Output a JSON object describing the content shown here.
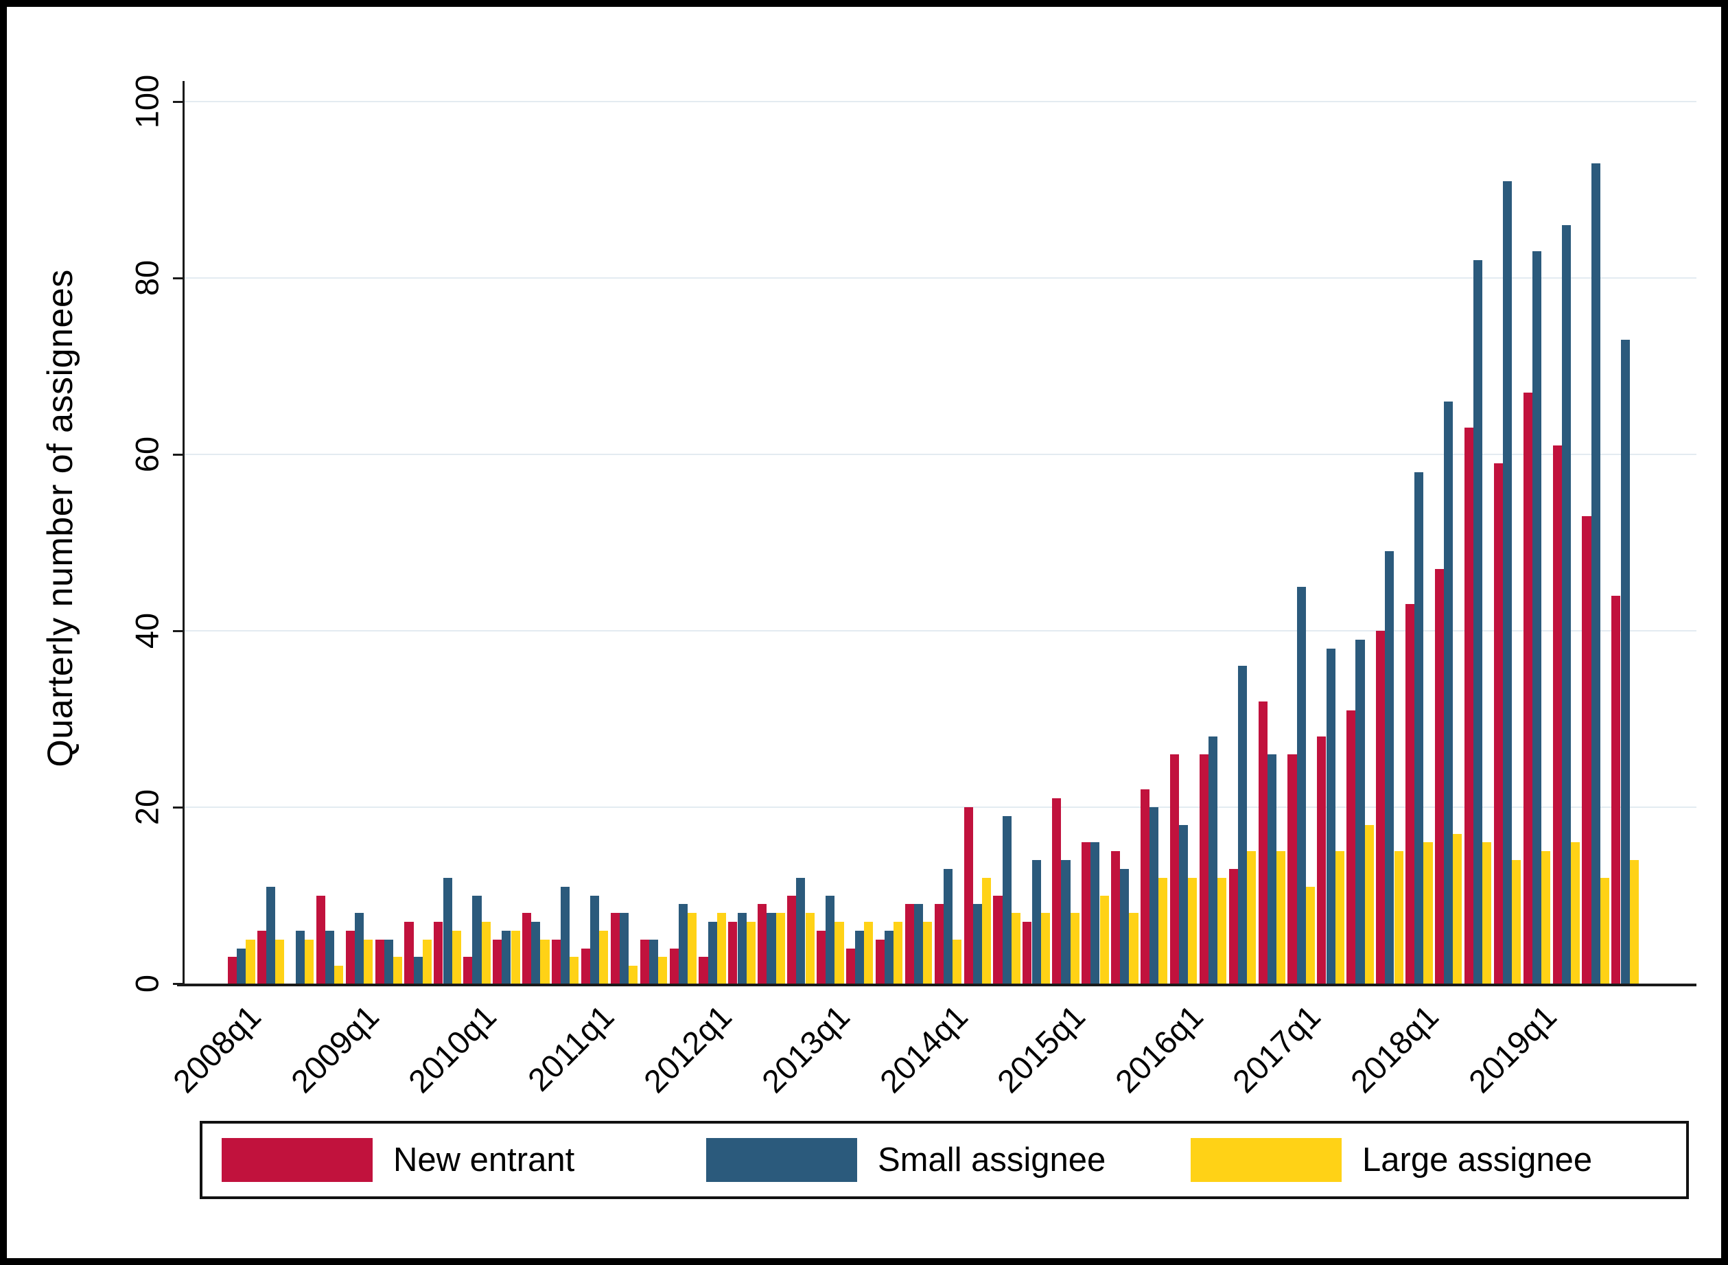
{
  "figure": {
    "background": "#ffffff",
    "border_color": "#000000",
    "axis_color": "#1a1a1a",
    "gridline_color": "#e3ebf1"
  },
  "chart_data": {
    "type": "bar",
    "title": "",
    "xlabel": "",
    "ylabel": "Quarterly number of assignees",
    "ylim": [
      0,
      100
    ],
    "y_ticks": [
      0,
      20,
      40,
      60,
      80,
      100
    ],
    "grid": true,
    "legend_position": "bottom",
    "x_tick_labels": [
      "2008q1",
      "2009q1",
      "2010q1",
      "2011q1",
      "2012q1",
      "2013q1",
      "2014q1",
      "2015q1",
      "2016q1",
      "2017q1",
      "2018q1",
      "2019q1"
    ],
    "categories": [
      "2008q1",
      "2008q2",
      "2008q3",
      "2008q4",
      "2009q1",
      "2009q2",
      "2009q3",
      "2009q4",
      "2010q1",
      "2010q2",
      "2010q3",
      "2010q4",
      "2011q1",
      "2011q2",
      "2011q3",
      "2011q4",
      "2012q1",
      "2012q2",
      "2012q3",
      "2012q4",
      "2013q1",
      "2013q2",
      "2013q3",
      "2013q4",
      "2014q1",
      "2014q2",
      "2014q3",
      "2014q4",
      "2015q1",
      "2015q2",
      "2015q3",
      "2015q4",
      "2016q1",
      "2016q2",
      "2016q3",
      "2016q4",
      "2017q1",
      "2017q2",
      "2017q3",
      "2017q4",
      "2018q1",
      "2018q2",
      "2018q3",
      "2018q4",
      "2019q1",
      "2019q2",
      "2019q3",
      "2019q4"
    ],
    "series": [
      {
        "name": "New entrant",
        "color": "#c1123d",
        "values": [
          3,
          6,
          0,
          10,
          6,
          5,
          7,
          7,
          3,
          5,
          8,
          5,
          4,
          8,
          5,
          4,
          3,
          7,
          9,
          10,
          6,
          4,
          5,
          9,
          9,
          20,
          10,
          7,
          21,
          16,
          15,
          22,
          26,
          26,
          13,
          32,
          26,
          28,
          31,
          40,
          43,
          47,
          63,
          59,
          67,
          61,
          53,
          44
        ]
      },
      {
        "name": "Small assignee",
        "color": "#2b5a7c",
        "values": [
          4,
          11,
          6,
          6,
          8,
          5,
          3,
          12,
          10,
          6,
          7,
          11,
          10,
          8,
          5,
          9,
          7,
          8,
          8,
          12,
          10,
          6,
          6,
          9,
          13,
          9,
          19,
          14,
          14,
          16,
          13,
          20,
          18,
          28,
          36,
          26,
          45,
          38,
          39,
          49,
          58,
          66,
          82,
          91,
          83,
          86,
          93,
          73
        ]
      },
      {
        "name": "Large assignee",
        "color": "#ffd216",
        "values": [
          5,
          5,
          5,
          2,
          5,
          3,
          5,
          6,
          7,
          6,
          5,
          3,
          6,
          2,
          3,
          8,
          8,
          7,
          8,
          8,
          7,
          7,
          7,
          7,
          5,
          12,
          8,
          8,
          8,
          10,
          8,
          12,
          12,
          12,
          15,
          15,
          11,
          15,
          18,
          15,
          16,
          17,
          16,
          14,
          15,
          16,
          12,
          14
        ]
      }
    ]
  }
}
